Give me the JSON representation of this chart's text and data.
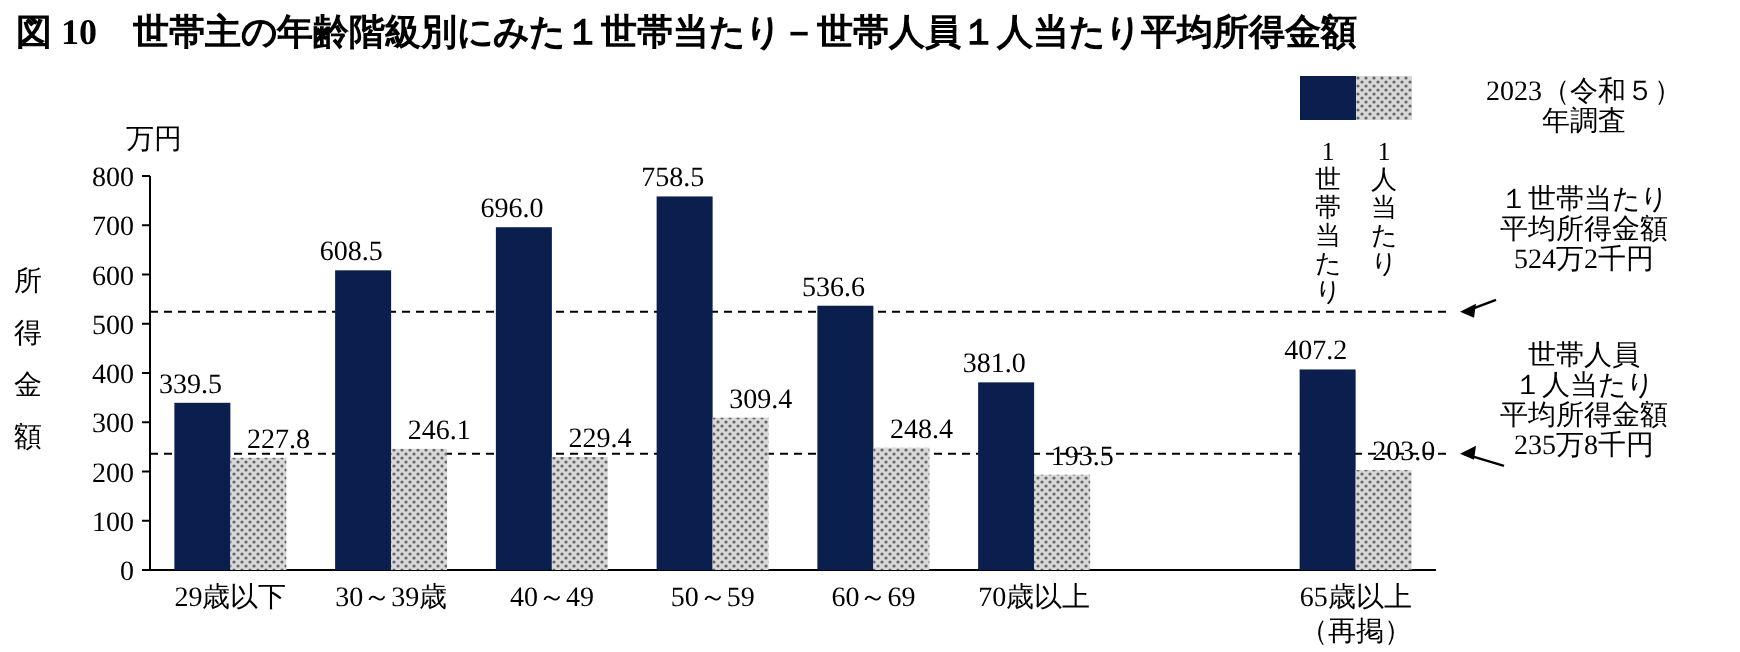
{
  "chart_data": {
    "type": "bar",
    "title": "図 10　世帯主の年齢階級別にみた１世帯当たり－世帯人員１人当たり平均所得金額",
    "ylabel": "所得金額",
    "annotations": [
      "万円"
    ],
    "legend_title": "2023（令和５）年調査",
    "categories": [
      "29歳以下",
      "30～39歳",
      "40～49",
      "50～59",
      "60～69",
      "70歳以上",
      null,
      "65歳以上（再掲）"
    ],
    "series": [
      {
        "name": "1世帯当たり",
        "color": "#0b1f4e",
        "values": [
          339.5,
          608.5,
          696.0,
          758.5,
          536.6,
          381.0,
          null,
          407.2
        ],
        "value_labels": [
          "339.5",
          "608.5",
          "696.0",
          "758.5",
          "536.6",
          "381.0",
          null,
          "407.2"
        ]
      },
      {
        "name": "1人当たり",
        "color": "#d8d8d8",
        "values": [
          227.8,
          246.1,
          229.4,
          309.4,
          248.4,
          193.5,
          null,
          203.0
        ],
        "value_labels": [
          "227.8",
          "246.1",
          "229.4",
          "309.4",
          "248.4",
          "193.5",
          null,
          "203.0"
        ]
      }
    ],
    "ylim": [
      0,
      800
    ],
    "yticks": [
      0,
      100,
      200,
      300,
      400,
      500,
      600,
      700,
      800
    ],
    "ref_lines": [
      {
        "axis": "y",
        "value": 524.2,
        "label": "１世帯当たり平均所得金額524万2千円",
        "line_style": "dashed"
      },
      {
        "axis": "y",
        "value": 235.8,
        "label": "世帯人員１人当たり平均所得金額235万8千円",
        "line_style": "dashed"
      }
    ],
    "legend": "top right",
    "grid": false
  }
}
